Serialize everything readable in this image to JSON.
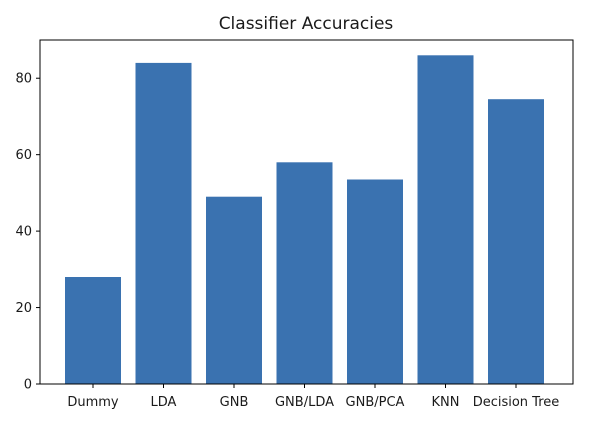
{
  "chart_data": {
    "type": "bar",
    "title": "Classifier Accuracies",
    "xlabel": "",
    "ylabel": "",
    "categories": [
      "Dummy",
      "LDA",
      "GNB",
      "GNB/LDA",
      "GNB/PCA",
      "KNN",
      "Decision Tree"
    ],
    "values": [
      28,
      84,
      49,
      58,
      53.5,
      86,
      74.5
    ],
    "ylim": [
      0,
      90
    ],
    "yticks": [
      0,
      20,
      40,
      60,
      80
    ],
    "grid": false,
    "legend": "none",
    "bar_color": "#3a72b0"
  }
}
